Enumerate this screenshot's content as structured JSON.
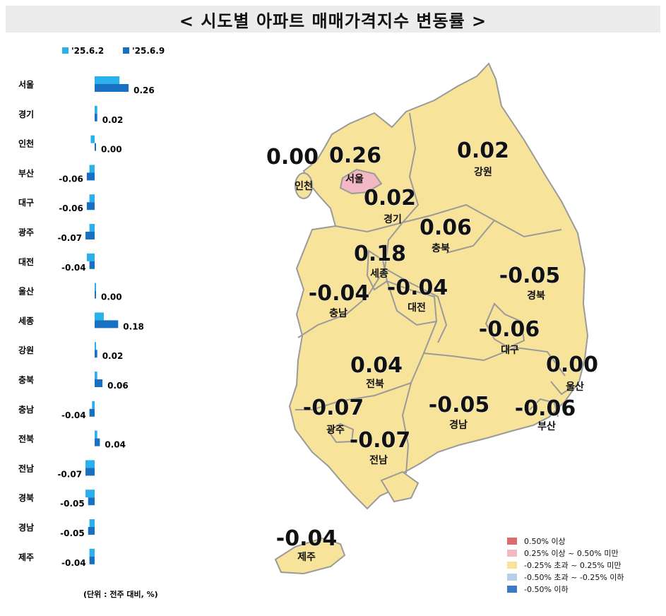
{
  "header": {
    "title": "< 시도별 아파트 매매가격지수 변동률 >"
  },
  "chart_data": {
    "type": "bar",
    "orientation": "horizontal",
    "categories": [
      "서울",
      "경기",
      "인천",
      "부산",
      "대구",
      "광주",
      "대전",
      "울산",
      "세종",
      "강원",
      "충북",
      "충남",
      "전북",
      "전남",
      "경북",
      "경남",
      "제주"
    ],
    "series": [
      {
        "name": "'25.6.2",
        "color": "#2ab0ea",
        "values": [
          0.19,
          0.02,
          -0.03,
          -0.04,
          -0.04,
          -0.04,
          -0.06,
          0.0,
          0.07,
          0.01,
          0.02,
          -0.02,
          0.02,
          -0.07,
          -0.07,
          -0.04,
          -0.04
        ]
      },
      {
        "name": "'25.6.9",
        "color": "#1770c2",
        "values": [
          0.26,
          0.02,
          0.0,
          -0.06,
          -0.06,
          -0.07,
          -0.04,
          0.0,
          0.18,
          0.02,
          0.06,
          -0.04,
          0.04,
          -0.07,
          -0.05,
          -0.05,
          -0.04
        ]
      }
    ],
    "data_labels": [
      "0.26",
      "0.02",
      "0.00",
      "-0.06",
      "-0.06",
      "-0.07",
      "-0.04",
      "0.00",
      "0.18",
      "0.02",
      "0.06",
      "-0.04",
      "0.04",
      "-0.07",
      "-0.05",
      "-0.05",
      "-0.04"
    ],
    "unit_note": "(단위 : 전주 대비, %)",
    "legend_position": "top",
    "grid": false
  },
  "map": {
    "regions": [
      {
        "name": "인천",
        "value": "0.00"
      },
      {
        "name": "서울",
        "value": "0.26"
      },
      {
        "name": "강원",
        "value": "0.02"
      },
      {
        "name": "경기",
        "value": "0.02"
      },
      {
        "name": "충북",
        "value": "0.06"
      },
      {
        "name": "세종",
        "value": "0.18"
      },
      {
        "name": "경북",
        "value": "-0.05"
      },
      {
        "name": "충남",
        "value": "-0.04"
      },
      {
        "name": "대전",
        "value": "-0.04"
      },
      {
        "name": "대구",
        "value": "-0.06"
      },
      {
        "name": "울산",
        "value": "0.00"
      },
      {
        "name": "전북",
        "value": "0.04"
      },
      {
        "name": "광주",
        "value": "-0.07"
      },
      {
        "name": "경남",
        "value": "-0.05"
      },
      {
        "name": "부산",
        "value": "-0.06"
      },
      {
        "name": "전남",
        "value": "-0.07"
      },
      {
        "name": "제주",
        "value": "-0.04"
      }
    ],
    "colors": {
      "land": "#f7e39a",
      "border": "#9a9a9a",
      "seoul": "#f2b9c4"
    },
    "legend": [
      {
        "label": "0.50% 이상",
        "color": "#e06a6a"
      },
      {
        "label": "0.25% 이상 ~ 0.50% 미만",
        "color": "#f2b9c4"
      },
      {
        "label": "-0.25% 초과 ~ 0.25% 미만",
        "color": "#f7e39a"
      },
      {
        "label": "-0.50% 초과 ~ -0.25% 이하",
        "color": "#b8cfe8"
      },
      {
        "label": "-0.50% 이하",
        "color": "#3a78c8"
      }
    ]
  }
}
